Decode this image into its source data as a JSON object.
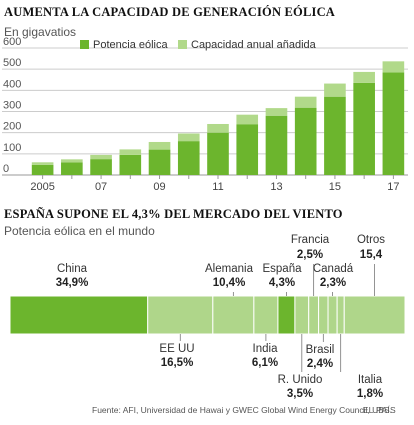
{
  "colors": {
    "main": "#6cb52d",
    "light": "#b1d98a",
    "seg_light": "#afd68a",
    "grid": "#cccccc",
    "text": "#333333",
    "leader": "#777777"
  },
  "chart_data": [
    {
      "type": "bar",
      "stacked": true,
      "title": "AUMENTA LA CAPACIDAD DE GENERACIÓN EÓLICA",
      "subtitle": "En gigavatios",
      "years": [
        2005,
        2006,
        2007,
        2008,
        2009,
        2010,
        2011,
        2012,
        2013,
        2014,
        2015,
        2016,
        2017
      ],
      "tick_labels": [
        "2005",
        "",
        "07",
        "",
        "09",
        "",
        "11",
        "",
        "13",
        "",
        "15",
        "",
        "17"
      ],
      "y_ticks": [
        0,
        100,
        200,
        300,
        400,
        500,
        600
      ],
      "ylim": [
        0,
        600
      ],
      "grid": true,
      "legend_position": "top",
      "series": [
        {
          "name": "Potencia eólica",
          "values": [
            48,
            60,
            75,
            95,
            120,
            160,
            200,
            240,
            280,
            318,
            370,
            435,
            485
          ]
        },
        {
          "name": "Capacidad anual añadida",
          "values": [
            12,
            14,
            20,
            26,
            36,
            36,
            41,
            45,
            36,
            52,
            62,
            52,
            52
          ]
        }
      ]
    },
    {
      "type": "bar",
      "stacked": true,
      "orientation": "horizontal",
      "title": "ESPAÑA SUPONE EL 4,3% DEL MERCADO DEL VIENTO",
      "subtitle": "Potencia eólica en el mundo",
      "segments": [
        {
          "name": "China",
          "label": "34,9%",
          "value": 34.9
        },
        {
          "name": "EE UU",
          "label": "16,5%",
          "value": 16.5
        },
        {
          "name": "Alemania",
          "label": "10,4%",
          "value": 10.4
        },
        {
          "name": "India",
          "label": "6,1%",
          "value": 6.1
        },
        {
          "name": "España",
          "label": "4,3%",
          "value": 4.3
        },
        {
          "name": "R. Unido",
          "label": "3,5%",
          "value": 3.5
        },
        {
          "name": "Francia",
          "label": "2,5%",
          "value": 2.5
        },
        {
          "name": "Brasil",
          "label": "2,4%",
          "value": 2.4
        },
        {
          "name": "Canadá",
          "label": "2,3%",
          "value": 2.3
        },
        {
          "name": "Italia",
          "label": "1,8%",
          "value": 1.8
        },
        {
          "name": "Otros",
          "label": "15,4",
          "value": 15.4
        }
      ]
    }
  ],
  "footer": {
    "source": "Fuente: AFI, Universidad de Hawai y GWEC Global Wind Energy Council, UBS.",
    "brand": "EL PAÍS"
  }
}
